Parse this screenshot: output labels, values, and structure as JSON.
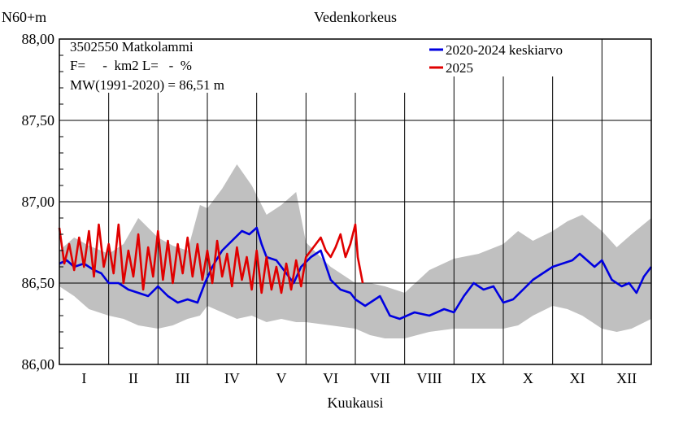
{
  "chart_data": {
    "type": "line",
    "title": "Vedenkorkeus",
    "ylabel": "N60+m",
    "xlabel": "Kuukausi",
    "ylim": [
      86.0,
      88.0
    ],
    "xlim": [
      0,
      12
    ],
    "y_ticks": [
      "86,00",
      "86,50",
      "87,00",
      "87,50",
      "88,00"
    ],
    "y_tick_values": [
      86.0,
      86.5,
      87.0,
      87.5,
      88.0
    ],
    "categories": [
      "I",
      "II",
      "III",
      "IV",
      "V",
      "VI",
      "VII",
      "VIII",
      "IX",
      "X",
      "XI",
      "XII"
    ],
    "info_lines": [
      "3502550 Matkolammi",
      "F=     -  km2 L=   -  %",
      "MW(1991-2020) = 86,51 m"
    ],
    "grid": true,
    "legend_position": "top-right",
    "colors": {
      "mean": "#0000e0",
      "current": "#e00000",
      "band": "#c0c0c0"
    },
    "band": {
      "x": [
        0.0,
        0.3,
        0.6,
        1.0,
        1.3,
        1.6,
        2.0,
        2.3,
        2.6,
        2.85,
        3.0,
        3.3,
        3.6,
        3.9,
        4.2,
        4.5,
        4.8,
        5.0,
        5.5,
        6.0,
        6.3,
        6.6,
        7.0,
        7.5,
        8.0,
        8.5,
        9.0,
        9.3,
        9.6,
        10.0,
        10.3,
        10.6,
        11.0,
        11.3,
        11.6,
        12.0
      ],
      "high": [
        86.7,
        86.78,
        86.73,
        86.68,
        86.74,
        86.9,
        86.78,
        86.73,
        86.7,
        86.98,
        86.96,
        87.08,
        87.23,
        87.1,
        86.92,
        86.98,
        87.06,
        86.75,
        86.6,
        86.5,
        86.5,
        86.48,
        86.44,
        86.58,
        86.65,
        86.68,
        86.74,
        86.82,
        86.76,
        86.82,
        86.88,
        86.92,
        86.82,
        86.72,
        86.8,
        86.9
      ],
      "low": [
        86.48,
        86.42,
        86.34,
        86.3,
        86.28,
        86.24,
        86.22,
        86.24,
        86.28,
        86.3,
        86.36,
        86.32,
        86.28,
        86.3,
        86.26,
        86.28,
        86.26,
        86.26,
        86.24,
        86.22,
        86.18,
        86.16,
        86.16,
        86.2,
        86.22,
        86.22,
        86.22,
        86.24,
        86.3,
        86.36,
        86.34,
        86.3,
        86.22,
        86.2,
        86.22,
        86.28
      ]
    },
    "series": [
      {
        "name": "2020-2024 keskiarvo",
        "color": "#0000e0",
        "x": [
          0.0,
          0.15,
          0.3,
          0.5,
          0.7,
          0.85,
          1.0,
          1.2,
          1.4,
          1.6,
          1.8,
          2.0,
          2.2,
          2.4,
          2.6,
          2.8,
          2.95,
          3.1,
          3.3,
          3.5,
          3.7,
          3.85,
          4.0,
          4.1,
          4.2,
          4.4,
          4.6,
          4.75,
          4.9,
          5.1,
          5.3,
          5.5,
          5.7,
          5.9,
          6.0,
          6.2,
          6.4,
          6.5,
          6.7,
          6.9,
          7.2,
          7.5,
          7.8,
          8.0,
          8.2,
          8.4,
          8.6,
          8.8,
          9.0,
          9.2,
          9.4,
          9.6,
          9.8,
          10.0,
          10.2,
          10.4,
          10.55,
          10.7,
          10.85,
          11.0,
          11.2,
          11.4,
          11.55,
          11.7,
          11.85,
          12.0
        ],
        "values": [
          86.62,
          86.64,
          86.6,
          86.62,
          86.58,
          86.56,
          86.5,
          86.5,
          86.46,
          86.44,
          86.42,
          86.48,
          86.42,
          86.38,
          86.4,
          86.38,
          86.5,
          86.6,
          86.7,
          86.76,
          86.82,
          86.8,
          86.84,
          86.74,
          86.66,
          86.64,
          86.56,
          86.5,
          86.6,
          86.66,
          86.7,
          86.52,
          86.46,
          86.44,
          86.4,
          86.36,
          86.4,
          86.42,
          86.3,
          86.28,
          86.32,
          86.3,
          86.34,
          86.32,
          86.42,
          86.5,
          86.46,
          86.48,
          86.38,
          86.4,
          86.46,
          86.52,
          86.56,
          86.6,
          86.62,
          86.64,
          86.68,
          86.64,
          86.6,
          86.64,
          86.52,
          86.48,
          86.5,
          86.44,
          86.54,
          86.6
        ]
      },
      {
        "name": "2025",
        "color": "#e00000",
        "x": [
          0.0,
          0.1,
          0.2,
          0.3,
          0.4,
          0.5,
          0.6,
          0.7,
          0.8,
          0.9,
          1.0,
          1.1,
          1.2,
          1.3,
          1.4,
          1.5,
          1.6,
          1.7,
          1.8,
          1.9,
          2.0,
          2.1,
          2.2,
          2.3,
          2.4,
          2.5,
          2.6,
          2.7,
          2.8,
          2.9,
          3.0,
          3.1,
          3.2,
          3.3,
          3.4,
          3.5,
          3.6,
          3.7,
          3.8,
          3.9,
          4.0,
          4.1,
          4.2,
          4.3,
          4.4,
          4.5,
          4.6,
          4.7,
          4.8,
          4.9,
          5.0,
          5.1,
          5.2,
          5.3,
          5.4,
          5.5,
          5.6,
          5.7,
          5.8,
          5.9,
          6.0,
          6.05,
          6.15
        ],
        "values": [
          86.84,
          86.62,
          86.74,
          86.58,
          86.78,
          86.6,
          86.82,
          86.54,
          86.86,
          86.6,
          86.74,
          86.56,
          86.86,
          86.5,
          86.7,
          86.54,
          86.8,
          86.46,
          86.72,
          86.54,
          86.82,
          86.52,
          86.76,
          86.5,
          86.74,
          86.56,
          86.78,
          86.54,
          86.74,
          86.52,
          86.7,
          86.5,
          86.76,
          86.54,
          86.68,
          86.48,
          86.72,
          86.52,
          86.66,
          86.46,
          86.7,
          86.44,
          86.66,
          86.46,
          86.6,
          86.44,
          86.62,
          86.46,
          86.64,
          86.48,
          86.66,
          86.7,
          86.74,
          86.78,
          86.7,
          86.66,
          86.72,
          86.8,
          86.66,
          86.74,
          86.86,
          86.66,
          86.5
        ]
      }
    ]
  }
}
